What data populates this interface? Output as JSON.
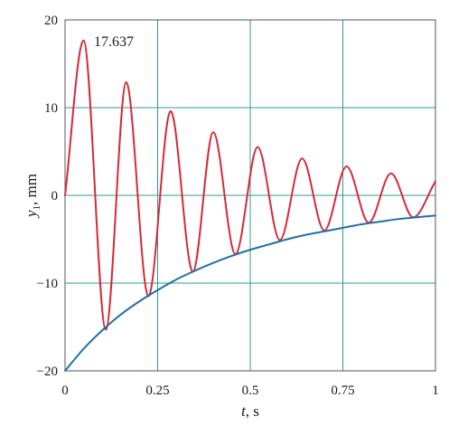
{
  "chart_data": {
    "type": "line",
    "title": "",
    "xlabel": {
      "var": "t",
      "unit": ", s"
    },
    "ylabel": {
      "var": "y",
      "sub": "1",
      "unit": ", mm"
    },
    "xlim": [
      0,
      1
    ],
    "ylim": [
      -20,
      20
    ],
    "xticks": [
      0,
      0.25,
      0.5,
      0.75,
      1
    ],
    "xtick_labels": [
      "0",
      "0.25",
      "0.5",
      "0.75",
      "1"
    ],
    "yticks": [
      -20,
      -10,
      0,
      10,
      20
    ],
    "ytick_labels": [
      "−20",
      "−10",
      "0",
      "10",
      "20"
    ],
    "grid": true,
    "annotation": {
      "text": "17.637",
      "x": 0.05,
      "y": 17.637
    },
    "series": [
      {
        "color": "#d62a3a",
        "x": [
          0,
          0.05,
          0.11,
          0.165,
          0.225,
          0.285,
          0.345,
          0.4,
          0.46,
          0.52,
          0.58,
          0.64,
          0.7,
          0.76,
          0.82,
          0.88,
          0.94,
          1.0
        ],
        "y": [
          0,
          17.637,
          -15.3,
          12.9,
          -11.5,
          9.6,
          -8.7,
          7.2,
          -6.7,
          5.5,
          -5.1,
          4.2,
          -4.0,
          3.3,
          -3.1,
          2.5,
          -2.5,
          1.6
        ]
      },
      {
        "color": "#1f6fa8",
        "x": [
          0,
          0.05,
          0.1,
          0.15,
          0.2,
          0.25,
          0.3,
          0.35,
          0.4,
          0.45,
          0.5,
          0.55,
          0.6,
          0.65,
          0.7,
          0.75,
          0.8,
          0.85,
          0.9,
          0.95,
          1.0
        ],
        "y": [
          -20,
          -17.5,
          -15.4,
          -13.6,
          -12.1,
          -10.8,
          -9.6,
          -8.6,
          -7.7,
          -6.9,
          -6.2,
          -5.6,
          -5.0,
          -4.5,
          -4.1,
          -3.7,
          -3.3,
          -3.0,
          -2.7,
          -2.5,
          -2.3
        ]
      }
    ]
  }
}
